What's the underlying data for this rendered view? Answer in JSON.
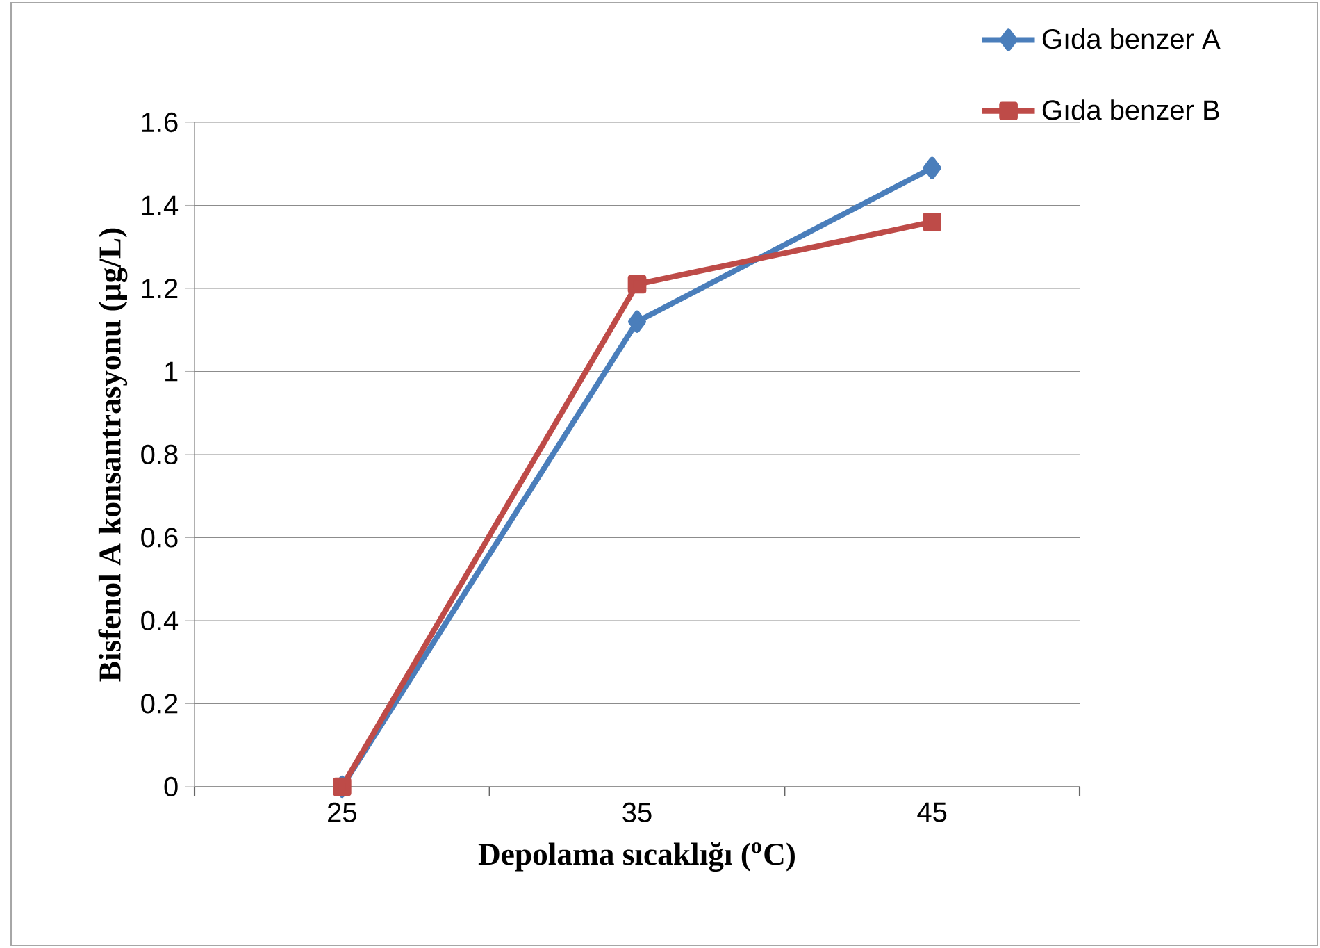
{
  "chart_data": {
    "type": "line",
    "xlabel": "Depolama sıcaklığı ($^{o}$C)",
    "ylabel": "Bisfenol A konsantrasyonu (µg/L)",
    "categories": [
      "25",
      "35",
      "45"
    ],
    "series": [
      {
        "name": "Gıda benzer A",
        "color": "#4a7ebb",
        "marker": "diamond",
        "values": [
          0,
          1.12,
          1.49
        ]
      },
      {
        "name": "Gıda benzer B",
        "color": "#be4b48",
        "marker": "square",
        "values": [
          0,
          1.21,
          1.36
        ]
      }
    ],
    "ylim": [
      0,
      1.6
    ],
    "yticks": [
      0,
      0.2,
      0.4,
      0.6,
      0.8,
      1,
      1.2,
      1.4,
      1.6
    ],
    "grid": "y",
    "legend": "top right",
    "line_style": "solid"
  }
}
